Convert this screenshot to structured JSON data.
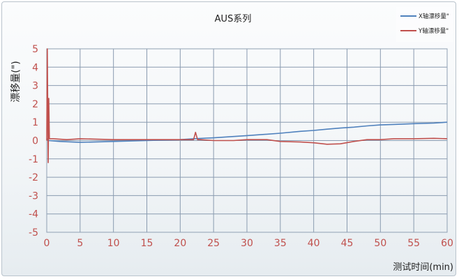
{
  "chart_data": {
    "type": "line",
    "title": "AUS系列",
    "xlabel": "测试时间(min)",
    "ylabel": "漂移量(\")",
    "xlim": [
      0,
      60
    ],
    "ylim": [
      -5,
      5
    ],
    "x_ticks": [
      0,
      5,
      10,
      15,
      20,
      25,
      30,
      35,
      40,
      45,
      50,
      55,
      60
    ],
    "y_ticks": [
      5,
      4,
      3,
      2,
      1,
      0,
      -1,
      -2,
      -3,
      -4,
      -5
    ],
    "grid": true,
    "legend_position": "top-right",
    "series": [
      {
        "name": "X轴漂移量\"",
        "color": "#4f81bd",
        "x": [
          0,
          0.3,
          2,
          5,
          10,
          15,
          20,
          22,
          25,
          28,
          30,
          32,
          35,
          38,
          40,
          42,
          44,
          46,
          48,
          50,
          52,
          55,
          58,
          60
        ],
        "y": [
          0.1,
          0.0,
          -0.05,
          -0.1,
          -0.05,
          0.0,
          0.05,
          0.1,
          0.15,
          0.22,
          0.27,
          0.32,
          0.4,
          0.5,
          0.55,
          0.62,
          0.68,
          0.73,
          0.8,
          0.85,
          0.88,
          0.92,
          0.95,
          1.0
        ]
      },
      {
        "name": "Y轴漂移量\"",
        "color": "#c0504d",
        "x": [
          0,
          0.08,
          0.15,
          0.22,
          0.3,
          0.4,
          1,
          3,
          5,
          10,
          15,
          20,
          22,
          22.3,
          22.6,
          23,
          25,
          28,
          30,
          33,
          35,
          38,
          40,
          42,
          44,
          46,
          48,
          50,
          52,
          55,
          58,
          60
        ],
        "y": [
          0,
          5,
          2.0,
          -1.2,
          2.3,
          0.1,
          0.1,
          0.05,
          0.1,
          0.05,
          0.05,
          0.05,
          0.05,
          0.45,
          0.05,
          0.05,
          0.0,
          0.0,
          0.05,
          0.05,
          -0.05,
          -0.08,
          -0.12,
          -0.2,
          -0.18,
          -0.05,
          0.05,
          0.05,
          0.1,
          0.1,
          0.12,
          0.1
        ]
      }
    ]
  }
}
